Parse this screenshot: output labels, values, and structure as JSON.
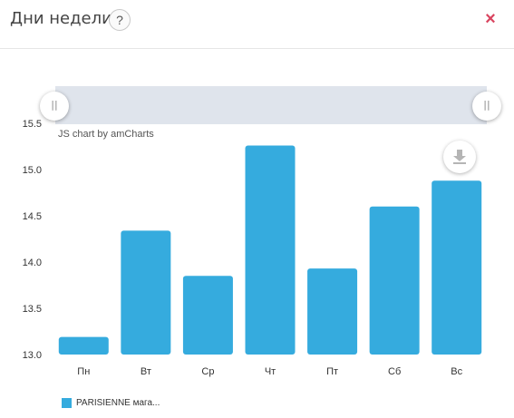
{
  "header": {
    "title": "Дни недели",
    "help_label": "?",
    "close_label": "×"
  },
  "scrollbar": {
    "grip_left_label": "||",
    "grip_right_label": "||"
  },
  "credit_text": "JS chart by amCharts",
  "colors": {
    "bar": "#35abde",
    "close": "#d9445f",
    "scrollbar_bg": "#dfe4ec"
  },
  "icons": {
    "download": "download-icon",
    "help": "question-icon",
    "close": "close-icon"
  },
  "legend": {
    "label": "PARISIENNE мага..."
  },
  "chart_data": {
    "type": "bar",
    "categories": [
      "Пн",
      "Вт",
      "Ср",
      "Чт",
      "Пт",
      "Сб",
      "Вс"
    ],
    "series": [
      {
        "name": "PARISIENNE мага...",
        "values": [
          13.19,
          14.34,
          13.85,
          15.26,
          13.93,
          14.6,
          14.88
        ]
      }
    ],
    "yticks": [
      "15.5",
      "15.0",
      "14.5",
      "14.0",
      "13.5",
      "13.0"
    ],
    "ylim": [
      13.0,
      15.5
    ],
    "grid": false,
    "legend_position": "bottom-left"
  }
}
